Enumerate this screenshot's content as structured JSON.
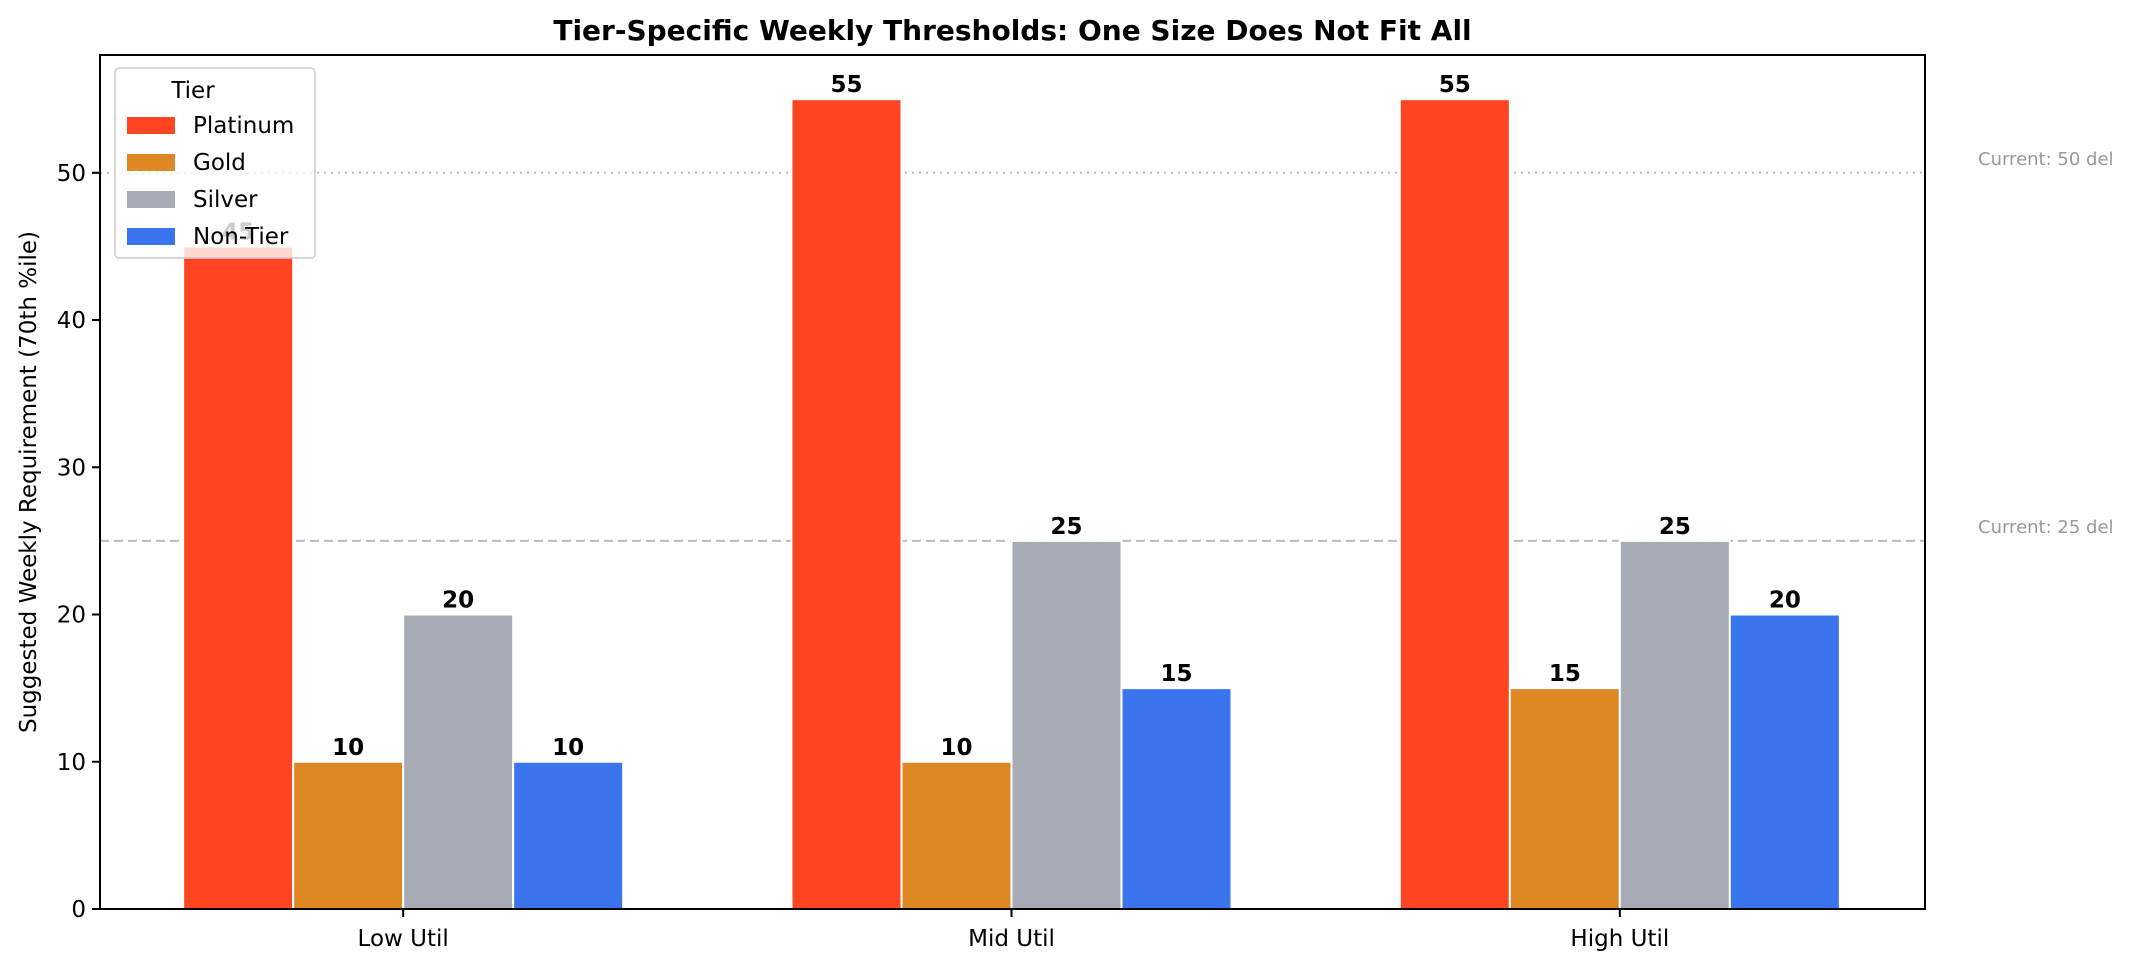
{
  "chart_data": {
    "type": "bar",
    "title": "Tier-Specific Weekly Thresholds: One Size Does Not Fit All",
    "xlabel": "",
    "ylabel": "Suggested Weekly Requirement (70th %ile)",
    "ylim": [
      0,
      58
    ],
    "yticks": [
      0,
      10,
      20,
      30,
      40,
      50
    ],
    "categories": [
      "Low Util",
      "Mid Util",
      "High Util"
    ],
    "series": [
      {
        "name": "Platinum",
        "color": "#ff4422",
        "values": [
          45,
          55,
          55
        ]
      },
      {
        "name": "Gold",
        "color": "#dd8822",
        "values": [
          10,
          10,
          15
        ]
      },
      {
        "name": "Silver",
        "color": "#a6abb6",
        "values": [
          20,
          25,
          25
        ]
      },
      {
        "name": "Non-Tier",
        "color": "#3b75ee",
        "values": [
          10,
          15,
          20
        ]
      }
    ],
    "legend": {
      "title": "Tier",
      "position": "top-left"
    },
    "reference_lines": [
      {
        "value": 50,
        "style": "dotted",
        "label": "Current: 50 del"
      },
      {
        "value": 25,
        "style": "dashed",
        "label": "Current: 25 del"
      }
    ],
    "grid": false
  }
}
